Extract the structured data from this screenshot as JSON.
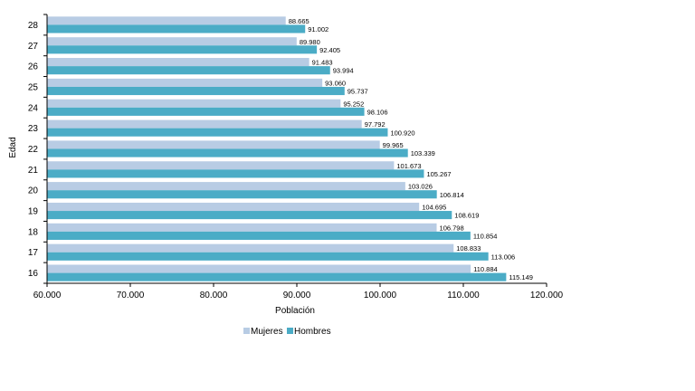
{
  "chart_data": {
    "type": "bar",
    "orientation": "horizontal",
    "categories": [
      "16",
      "17",
      "18",
      "19",
      "20",
      "21",
      "22",
      "23",
      "24",
      "25",
      "26",
      "27",
      "28"
    ],
    "series": [
      {
        "name": "Mujeres",
        "color": "#b8cce4",
        "values": [
          110884,
          108833,
          106798,
          104695,
          103026,
          101673,
          99965,
          97792,
          95252,
          93060,
          91483,
          89980,
          88665
        ],
        "labels": [
          "110.884",
          "108.833",
          "106.798",
          "104.695",
          "103.026",
          "101.673",
          "99.965",
          "97.792",
          "95.252",
          "93.060",
          "91.483",
          "89.980",
          "88.665"
        ]
      },
      {
        "name": "Hombres",
        "color": "#4bacc6",
        "values": [
          115149,
          113006,
          110854,
          108619,
          106814,
          105267,
          103339,
          100920,
          98106,
          95737,
          93994,
          92405,
          91002
        ],
        "labels": [
          "115.149",
          "113.006",
          "110.854",
          "108.619",
          "106.814",
          "105.267",
          "103.339",
          "100.920",
          "98.106",
          "95.737",
          "93.994",
          "92.405",
          "91.002"
        ]
      }
    ],
    "xlabel": "Población",
    "ylabel": "Edad",
    "xlim": [
      60000,
      120000
    ],
    "xticks": [
      "60.000",
      "70.000",
      "80.000",
      "90.000",
      "100.000",
      "110.000",
      "120.000"
    ],
    "legend_position": "bottom",
    "grid": false
  }
}
